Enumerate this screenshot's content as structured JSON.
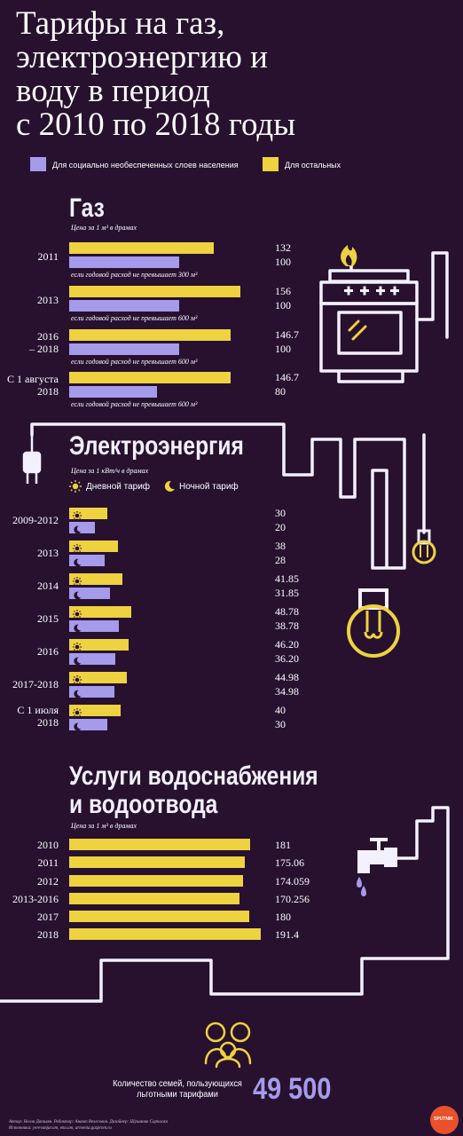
{
  "title": {
    "lines": [
      "Тарифы на газ,",
      "электроэнергию и",
      "воду в период",
      "с 2010 по 2018 годы"
    ]
  },
  "legend": {
    "social": "Для социально необеспеченных слоев населения",
    "others": "Для остальных"
  },
  "colors": {
    "background": "#27112f",
    "social": "#a59bea",
    "others": "#eed23f",
    "lines": "#f3f0ff"
  },
  "gas": {
    "title": "Газ",
    "unit": "Цена за 1 м³ в драмах"
  },
  "electricity": {
    "title": "Электроэнергия",
    "unit": "Цена за 1 кВт/ч в драмах",
    "day_label": "Дневной тариф",
    "night_label": "Ночной тариф"
  },
  "water": {
    "title_line1": "Услуги водоснабжения",
    "title_line2": "и водоотвода",
    "unit": "Цена за 1 м³ в драмах"
  },
  "families": {
    "label_line1": "Количество семей, пользующихся",
    "label_line2": "льготными тарифами",
    "count": "49 500"
  },
  "footer": {
    "line1": "Автор: Нелли Данилян. Редактор: Анаит Велесович. Дизайнер: Шушаник Саркисян",
    "line2": "Источники: yerevanjur.am, ena.am, armenia.gazprom.ru",
    "brand": "SPUTNIK"
  },
  "chart_data": [
    {
      "type": "bar",
      "title": "Газ",
      "ylabel": "Цена за 1 м³ в драмах",
      "categories": [
        "2011",
        "2013",
        "2016 – 2018",
        "С 1 августа 2018"
      ],
      "category_lines": [
        [
          "2011"
        ],
        [
          "2013"
        ],
        [
          "2016",
          "– 2018"
        ],
        [
          "С 1 августа",
          "2018"
        ]
      ],
      "series": [
        {
          "name": "Для остальных",
          "values": [
            132,
            156,
            146.7,
            146.7
          ],
          "labels": [
            "132",
            "156",
            "146.7",
            "146.7"
          ]
        },
        {
          "name": "Для социально необеспеченных слоев населения",
          "values": [
            100,
            100,
            100,
            80
          ],
          "labels": [
            "100",
            "100",
            "100",
            "80"
          ]
        }
      ],
      "notes": [
        "если годовой расход не превышает 300 м³",
        "если годовой расход не превышает 600 м³",
        "если годовой расход не превышает 600 м³",
        "если годовой расход не превышает 600 м³"
      ],
      "xlim": [
        0,
        210
      ]
    },
    {
      "type": "bar",
      "title": "Электроэнергия",
      "ylabel": "Цена за 1 кВт/ч в драмах",
      "categories": [
        "2009-2012",
        "2013",
        "2014",
        "2015",
        "2016",
        "2017-2018",
        "С 1 июля 2018"
      ],
      "category_lines": [
        [
          "2009-2012"
        ],
        [
          "2013"
        ],
        [
          "2014"
        ],
        [
          "2015"
        ],
        [
          "2016"
        ],
        [
          "2017-2018"
        ],
        [
          "С 1 июля",
          "2018"
        ]
      ],
      "series": [
        {
          "name": "Дневной тариф",
          "values": [
            30,
            38,
            41.85,
            48.78,
            46.2,
            44.98,
            40
          ],
          "labels": [
            "30",
            "38",
            "41.85",
            "48.78",
            "46.20",
            "44.98",
            "40"
          ]
        },
        {
          "name": "Ночной тариф",
          "values": [
            20,
            28,
            31.85,
            38.78,
            36.2,
            34.98,
            30
          ],
          "labels": [
            "20",
            "28",
            "31.85",
            "38.78",
            "36.20",
            "34.98",
            "30"
          ]
        }
      ],
      "xlim": [
        0,
        180
      ]
    },
    {
      "type": "bar",
      "title": "Услуги водоснабжения и водоотвода",
      "ylabel": "Цена за 1 м³ в драмах",
      "categories": [
        "2010",
        "2011",
        "2012",
        "2013-2016",
        "2017",
        "2018"
      ],
      "series": [
        {
          "name": "Для остальных",
          "values": [
            181,
            175.06,
            174.059,
            170.256,
            180,
            191.4
          ],
          "labels": [
            "181",
            "175.06",
            "174.059",
            "170.256",
            "180",
            "191.4"
          ]
        }
      ],
      "xlim": [
        0,
        191.4
      ]
    }
  ]
}
